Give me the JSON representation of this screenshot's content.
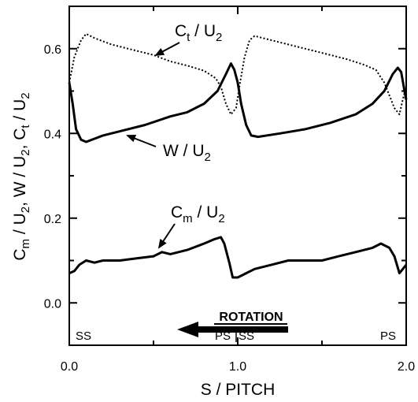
{
  "chart_data": {
    "type": "line",
    "xlabel": "S / PITCH",
    "ylabel": "C_m / U_2 , W / U_2 , C_t / U_2",
    "xlim": [
      0.0,
      2.0
    ],
    "ylim": [
      -0.1,
      0.7
    ],
    "x_ticks": [
      "0.0",
      "1.0",
      "2.0"
    ],
    "y_ticks": [
      "0.0",
      "0.2",
      "0.4",
      "0.6"
    ],
    "series": [
      {
        "name": "C_t / U_2",
        "style": "dotted",
        "points": [
          [
            0.0,
            0.52
          ],
          [
            0.03,
            0.58
          ],
          [
            0.07,
            0.62
          ],
          [
            0.1,
            0.635
          ],
          [
            0.15,
            0.625
          ],
          [
            0.25,
            0.61
          ],
          [
            0.35,
            0.6
          ],
          [
            0.5,
            0.585
          ],
          [
            0.6,
            0.57
          ],
          [
            0.7,
            0.56
          ],
          [
            0.8,
            0.548
          ],
          [
            0.87,
            0.53
          ],
          [
            0.9,
            0.51
          ],
          [
            0.93,
            0.47
          ],
          [
            0.96,
            0.445
          ],
          [
            0.99,
            0.46
          ],
          [
            1.01,
            0.51
          ],
          [
            1.04,
            0.58
          ],
          [
            1.07,
            0.62
          ],
          [
            1.1,
            0.63
          ],
          [
            1.2,
            0.62
          ],
          [
            1.3,
            0.61
          ],
          [
            1.45,
            0.595
          ],
          [
            1.55,
            0.585
          ],
          [
            1.65,
            0.575
          ],
          [
            1.75,
            0.562
          ],
          [
            1.82,
            0.55
          ],
          [
            1.87,
            0.52
          ],
          [
            1.9,
            0.49
          ],
          [
            1.93,
            0.46
          ],
          [
            1.96,
            0.445
          ],
          [
            1.98,
            0.48
          ],
          [
            2.0,
            0.51
          ]
        ]
      },
      {
        "name": "W / U_2",
        "style": "solid",
        "points": [
          [
            0.0,
            0.52
          ],
          [
            0.02,
            0.47
          ],
          [
            0.04,
            0.41
          ],
          [
            0.07,
            0.385
          ],
          [
            0.1,
            0.38
          ],
          [
            0.2,
            0.395
          ],
          [
            0.3,
            0.405
          ],
          [
            0.45,
            0.42
          ],
          [
            0.6,
            0.44
          ],
          [
            0.7,
            0.45
          ],
          [
            0.8,
            0.47
          ],
          [
            0.88,
            0.5
          ],
          [
            0.93,
            0.54
          ],
          [
            0.96,
            0.565
          ],
          [
            0.98,
            0.55
          ],
          [
            1.0,
            0.52
          ],
          [
            1.02,
            0.47
          ],
          [
            1.05,
            0.42
          ],
          [
            1.08,
            0.395
          ],
          [
            1.12,
            0.392
          ],
          [
            1.25,
            0.4
          ],
          [
            1.4,
            0.41
          ],
          [
            1.55,
            0.425
          ],
          [
            1.7,
            0.445
          ],
          [
            1.8,
            0.47
          ],
          [
            1.87,
            0.5
          ],
          [
            1.92,
            0.54
          ],
          [
            1.95,
            0.555
          ],
          [
            1.97,
            0.545
          ],
          [
            1.99,
            0.5
          ],
          [
            2.0,
            0.48
          ]
        ]
      },
      {
        "name": "C_m / U_2",
        "style": "solid",
        "points": [
          [
            0.0,
            0.07
          ],
          [
            0.03,
            0.075
          ],
          [
            0.06,
            0.09
          ],
          [
            0.1,
            0.1
          ],
          [
            0.15,
            0.095
          ],
          [
            0.2,
            0.1
          ],
          [
            0.3,
            0.1
          ],
          [
            0.4,
            0.105
          ],
          [
            0.5,
            0.11
          ],
          [
            0.55,
            0.12
          ],
          [
            0.6,
            0.115
          ],
          [
            0.7,
            0.125
          ],
          [
            0.8,
            0.14
          ],
          [
            0.86,
            0.15
          ],
          [
            0.9,
            0.155
          ],
          [
            0.92,
            0.14
          ],
          [
            0.95,
            0.095
          ],
          [
            0.97,
            0.06
          ],
          [
            1.0,
            0.06
          ],
          [
            1.05,
            0.07
          ],
          [
            1.1,
            0.08
          ],
          [
            1.2,
            0.09
          ],
          [
            1.3,
            0.1
          ],
          [
            1.4,
            0.1
          ],
          [
            1.5,
            0.1
          ],
          [
            1.6,
            0.11
          ],
          [
            1.7,
            0.12
          ],
          [
            1.8,
            0.13
          ],
          [
            1.85,
            0.14
          ],
          [
            1.9,
            0.13
          ],
          [
            1.93,
            0.11
          ],
          [
            1.96,
            0.07
          ],
          [
            2.0,
            0.09
          ]
        ]
      }
    ],
    "annotations": {
      "ct_label": "C",
      "ct_sub": "t",
      "ct_rest": " / U",
      "ct_sub2": "2",
      "w_label": "W / U",
      "w_sub": "2",
      "cm_label": "C",
      "cm_sub": "m",
      "cm_rest": " / U",
      "cm_sub2": "2",
      "rotation": "ROTATION",
      "ss_left": "SS",
      "ps_ss_mid": "PS",
      "ss_mid": "SS",
      "ps_right": "PS"
    }
  }
}
